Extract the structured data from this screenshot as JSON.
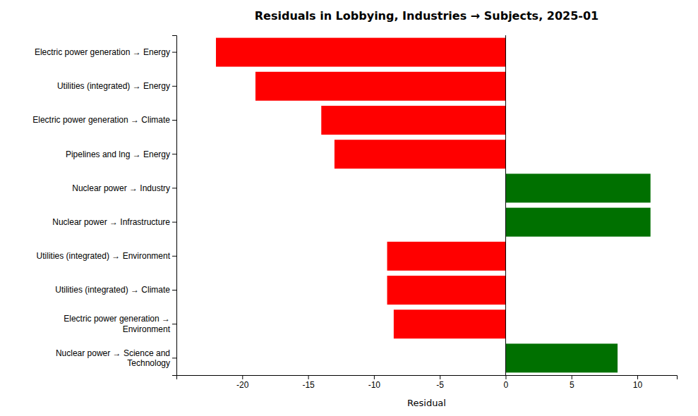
{
  "chart_data": {
    "type": "bar",
    "orientation": "horizontal",
    "title": "Residuals in Lobbying, Industries → Subjects, 2025-01",
    "xlabel": "Residual",
    "categories": [
      "Electric power generation → Energy",
      "Utilities (integrated) → Energy",
      "Electric power generation → Climate",
      "Pipelines and lng → Energy",
      "Nuclear power → Industry",
      "Nuclear power → Infrastructure",
      "Utilities (integrated) → Environment",
      "Utilities (integrated) → Climate",
      "Electric power generation →\nEnvironment",
      "Nuclear power → Science and\nTechnology"
    ],
    "values": [
      -22,
      -19,
      -14,
      -13,
      11,
      11,
      -9,
      -9,
      -8.5,
      8.5
    ],
    "colors": [
      "#ff0000",
      "#ff0000",
      "#ff0000",
      "#ff0000",
      "#007000",
      "#007000",
      "#ff0000",
      "#ff0000",
      "#ff0000",
      "#007000"
    ],
    "xlim": [
      -25,
      13
    ],
    "xticks": [
      -20,
      -15,
      -10,
      -5,
      0,
      5,
      10
    ],
    "grid": false
  }
}
